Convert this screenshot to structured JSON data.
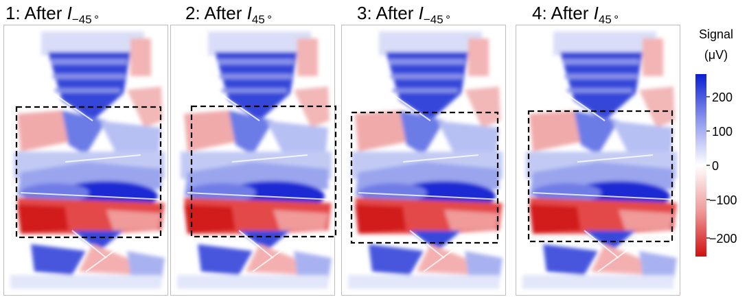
{
  "panels": [
    {
      "number": "1:",
      "word": "After",
      "current": "I",
      "subscript": "−45 °"
    },
    {
      "number": "2:",
      "word": "After",
      "current": "I",
      "subscript": "45 °"
    },
    {
      "number": "3:",
      "word": "After",
      "current": "I",
      "subscript": "−45 °"
    },
    {
      "number": "4:",
      "word": "After",
      "current": "I",
      "subscript": "45 °"
    }
  ],
  "colorbar": {
    "label_line1": "Signal",
    "label_line2": "(μV)",
    "ticks": [
      "200",
      "100",
      "0",
      "−100",
      "−200"
    ],
    "colors": {
      "max": "#0a1ed2",
      "mid": "#ffffff",
      "min": "#d01010"
    }
  }
}
